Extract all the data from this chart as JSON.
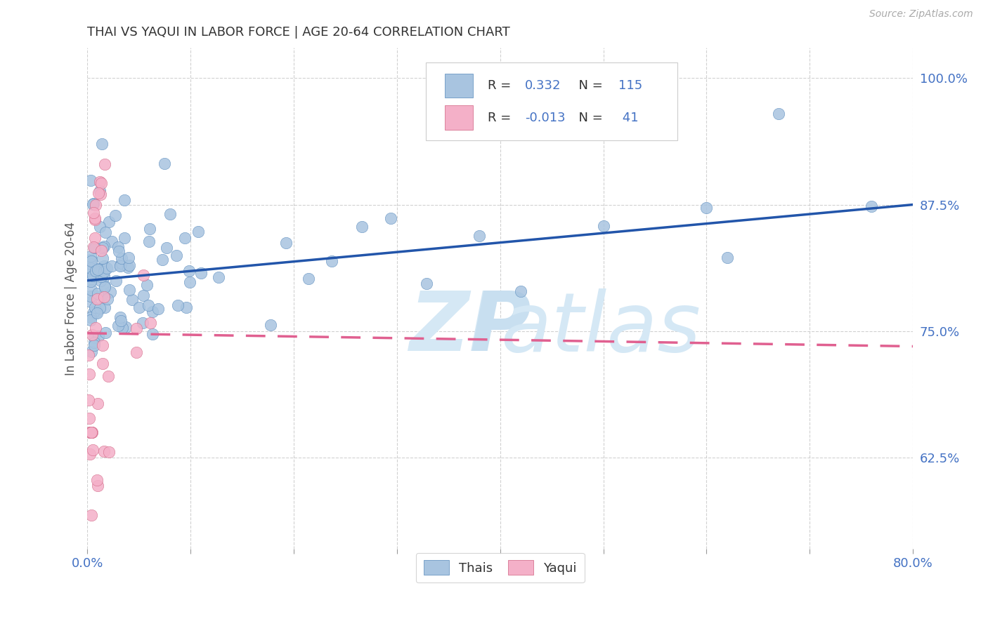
{
  "title": "THAI VS YAQUI IN LABOR FORCE | AGE 20-64 CORRELATION CHART",
  "source": "Source: ZipAtlas.com",
  "ylabel": "In Labor Force | Age 20-64",
  "xlim": [
    0.0,
    0.8
  ],
  "ylim": [
    0.535,
    1.03
  ],
  "yticks": [
    0.625,
    0.75,
    0.875,
    1.0
  ],
  "ytick_labels": [
    "62.5%",
    "75.0%",
    "87.5%",
    "100.0%"
  ],
  "xticks": [
    0.0,
    0.1,
    0.2,
    0.3,
    0.4,
    0.5,
    0.6,
    0.7,
    0.8
  ],
  "xtick_labels": [
    "0.0%",
    "",
    "",
    "",
    "",
    "",
    "",
    "",
    "80.0%"
  ],
  "thai_color": "#a8c4e0",
  "thai_edge_color": "#5588bb",
  "yaqui_color": "#f4b0c8",
  "yaqui_edge_color": "#d06080",
  "thai_line_color": "#2255aa",
  "yaqui_line_color": "#e06090",
  "legend_color": "#4472c4",
  "thai_R": 0.332,
  "thai_N": 115,
  "yaqui_R": -0.013,
  "yaqui_N": 41,
  "legend_thai": "Thais",
  "legend_yaqui": "Yaqui",
  "title_fontsize": 13,
  "axis_fontsize": 12,
  "watermark_color": "#d5e8f5",
  "thai_trend_x0": 0.0,
  "thai_trend_y0": 0.8,
  "thai_trend_x1": 0.8,
  "thai_trend_y1": 0.875,
  "yaqui_trend_x0": 0.0,
  "yaqui_trend_y0": 0.748,
  "yaqui_trend_x1": 0.8,
  "yaqui_trend_y1": 0.735
}
